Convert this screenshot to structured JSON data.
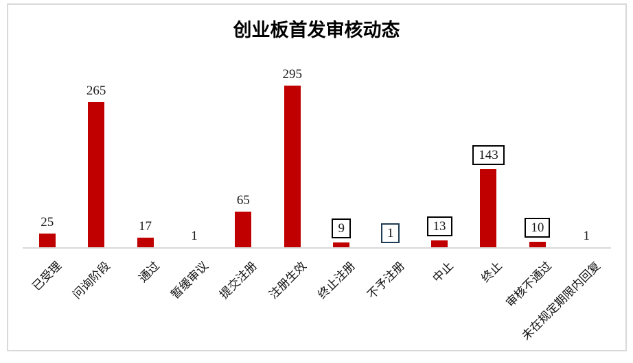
{
  "page": {
    "background_color": "#ffffff",
    "frame_border_color": "#d9d9d9"
  },
  "chart_data": {
    "type": "bar",
    "title": "创业板首发审核动态",
    "categories": [
      "已受理",
      "问询阶段",
      "通过",
      "暂缓审议",
      "提交注册",
      "注册生效",
      "终止注册",
      "不予注册",
      "中止",
      "终止",
      "审核不通过",
      "未在规定期限内回复"
    ],
    "values": [
      25,
      265,
      17,
      1,
      65,
      295,
      9,
      1,
      13,
      143,
      10,
      1
    ],
    "value_label_boxes": [
      "none",
      "none",
      "none",
      "none",
      "none",
      "none",
      "black",
      "navy",
      "black",
      "black",
      "black",
      "none"
    ],
    "bar_color": "#C00000",
    "box_border_colors": {
      "black": "#000000",
      "navy": "#1F3B54"
    },
    "axis_line_color": "#D9D9D9",
    "xlabel": "",
    "ylabel": "",
    "ylim": [
      0,
      300
    ],
    "gridlines": false,
    "y_axis_visible": false,
    "legend_position": "none",
    "x_label_rotation_deg": -45
  }
}
